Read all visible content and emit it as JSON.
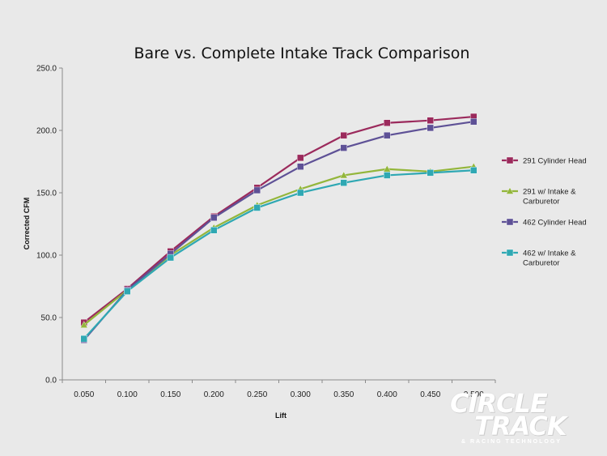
{
  "chart_data": {
    "type": "line",
    "title": "Bare vs. Complete Intake Track Comparison",
    "xlabel": "Lift",
    "ylabel": "Corrected CFM",
    "categories": [
      "0.050",
      "0.100",
      "0.150",
      "0.200",
      "0.250",
      "0.300",
      "0.350",
      "0.400",
      "0.450",
      "0.500"
    ],
    "y_ticks": [
      "0.0",
      "50.0",
      "100.0",
      "150.0",
      "200.0",
      "250.0"
    ],
    "ylim": [
      0,
      250
    ],
    "grid": false,
    "legend_position": "right",
    "series": [
      {
        "name": "291 Cylinder Head",
        "color": "#9b2a5c",
        "marker": "square",
        "values": [
          46,
          73,
          103,
          131,
          154,
          178,
          196,
          206,
          208,
          211
        ]
      },
      {
        "name": "291  w/ Intake & Carburetor",
        "color": "#93b63b",
        "marker": "triangle",
        "values": [
          44,
          72,
          100,
          122,
          140,
          153,
          164,
          169,
          167,
          171
        ]
      },
      {
        "name": "462 Cylinder Head",
        "color": "#5e5196",
        "marker": "square",
        "values": [
          32,
          72,
          101,
          130,
          152,
          171,
          186,
          196,
          202,
          207
        ]
      },
      {
        "name": "462  w/ Intake & Carburetor",
        "color": "#2fa8b3",
        "marker": "square",
        "values": [
          33,
          71,
          98,
          120,
          138,
          150,
          158,
          164,
          166,
          168
        ]
      }
    ],
    "legend_lines": [
      [
        "291 Cylinder Head"
      ],
      [
        "291  w/ Intake &",
        "Carburetor"
      ],
      [
        "462 Cylinder Head"
      ],
      [
        "462  w/ Intake &",
        "Carburetor"
      ]
    ]
  },
  "logo": {
    "line1": "CIRCLE",
    "line2": "TRACK",
    "tagline": "& RACING TECHNOLOGY"
  }
}
